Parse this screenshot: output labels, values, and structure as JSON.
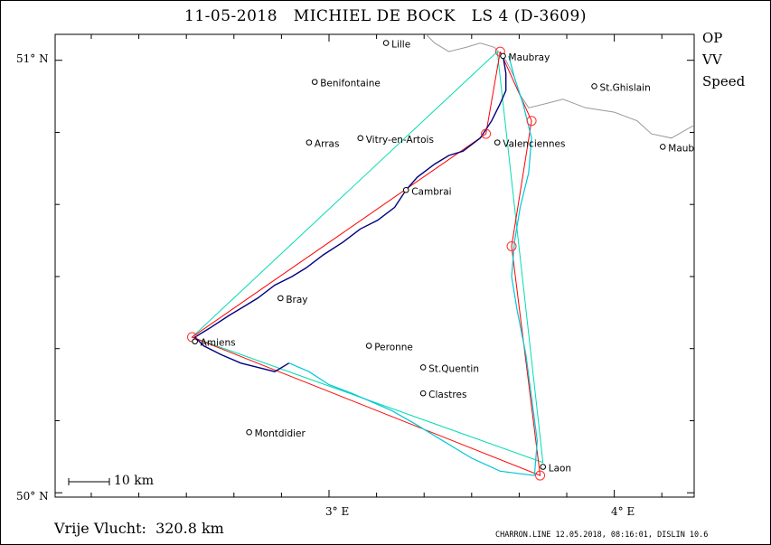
{
  "title": {
    "date": "11-05-2018",
    "pilot": "MICHIEL DE BOCK",
    "glider": "LS 4 (D-3609)"
  },
  "legend": [
    {
      "label": "OP",
      "color": "#00d88a"
    },
    {
      "label": "VV",
      "color": "#ff0000"
    },
    {
      "label": "Speed",
      "color": "#00dcdc"
    }
  ],
  "axes": {
    "lat_labels": [
      "51° N",
      "50° N"
    ],
    "lon_labels": [
      "3° E",
      "4° E"
    ]
  },
  "scale_bar": {
    "label": "10 km"
  },
  "footer": {
    "distance": "Vrije Vlucht:  320.8 km",
    "info": "CHARRON.LINE 12.05.2018, 08:16:01, DISLIN 10.6"
  },
  "map_data": {
    "extent": {
      "lon_min": 2.04,
      "lon_max": 4.28,
      "lat_min": 49.99,
      "lat_max": 51.06
    },
    "places": [
      {
        "name": "Lille",
        "lon": 3.2,
        "lat": 51.04
      },
      {
        "name": "Maubray",
        "lon": 3.61,
        "lat": 51.01
      },
      {
        "name": "Benifontaine",
        "lon": 2.95,
        "lat": 50.95
      },
      {
        "name": "St.Ghislain",
        "lon": 3.93,
        "lat": 50.94
      },
      {
        "name": "Arras",
        "lon": 2.93,
        "lat": 50.81
      },
      {
        "name": "Vitry-en-Artois",
        "lon": 3.11,
        "lat": 50.82
      },
      {
        "name": "Valenciennes",
        "lon": 3.59,
        "lat": 50.81
      },
      {
        "name": "Maub",
        "lon": 4.17,
        "lat": 50.8
      },
      {
        "name": "Cambrai",
        "lon": 3.27,
        "lat": 50.7
      },
      {
        "name": "Bray",
        "lon": 2.83,
        "lat": 50.45
      },
      {
        "name": "Amiens",
        "lon": 2.53,
        "lat": 50.35
      },
      {
        "name": "Peronne",
        "lon": 3.14,
        "lat": 50.34
      },
      {
        "name": "St.Quentin",
        "lon": 3.33,
        "lat": 50.29
      },
      {
        "name": "Clastres",
        "lon": 3.33,
        "lat": 50.23
      },
      {
        "name": "Montdidier",
        "lon": 2.72,
        "lat": 50.14
      },
      {
        "name": "Laon",
        "lon": 3.75,
        "lat": 50.06
      }
    ],
    "turnpoints_vv": [
      {
        "lon": 3.6,
        "lat": 51.02
      },
      {
        "lon": 3.55,
        "lat": 50.83
      },
      {
        "lon": 2.52,
        "lat": 50.36
      },
      {
        "lon": 3.74,
        "lat": 50.04
      },
      {
        "lon": 3.64,
        "lat": 50.57
      },
      {
        "lon": 3.71,
        "lat": 50.86
      },
      {
        "lon": 3.6,
        "lat": 51.02
      }
    ],
    "triangle_op": [
      {
        "lon": 3.59,
        "lat": 51.02
      },
      {
        "lon": 2.52,
        "lat": 50.36
      },
      {
        "lon": 3.75,
        "lat": 50.07
      },
      {
        "lon": 3.59,
        "lat": 51.02
      }
    ],
    "track_dark": [
      [
        3.61,
        51.01
      ],
      [
        3.62,
        50.97
      ],
      [
        3.62,
        50.93
      ],
      [
        3.6,
        50.9
      ],
      [
        3.57,
        50.86
      ],
      [
        3.53,
        50.82
      ],
      [
        3.47,
        50.79
      ],
      [
        3.42,
        50.78
      ],
      [
        3.37,
        50.76
      ],
      [
        3.31,
        50.73
      ],
      [
        3.27,
        50.7
      ],
      [
        3.23,
        50.66
      ],
      [
        3.17,
        50.63
      ],
      [
        3.11,
        50.61
      ],
      [
        3.05,
        50.58
      ],
      [
        2.98,
        50.55
      ],
      [
        2.92,
        50.52
      ],
      [
        2.87,
        50.5
      ],
      [
        2.81,
        50.48
      ],
      [
        2.75,
        50.45
      ],
      [
        2.7,
        50.43
      ],
      [
        2.65,
        50.41
      ],
      [
        2.58,
        50.38
      ],
      [
        2.53,
        50.36
      ],
      [
        2.56,
        50.34
      ],
      [
        2.62,
        50.32
      ],
      [
        2.69,
        50.3
      ],
      [
        2.75,
        50.29
      ],
      [
        2.81,
        50.28
      ],
      [
        2.86,
        50.3
      ]
    ],
    "track_cyan": [
      [
        2.86,
        50.3
      ],
      [
        2.93,
        50.28
      ],
      [
        3.0,
        50.25
      ],
      [
        3.08,
        50.23
      ],
      [
        3.15,
        50.21
      ],
      [
        3.22,
        50.19
      ],
      [
        3.3,
        50.16
      ],
      [
        3.4,
        50.12
      ],
      [
        3.5,
        50.08
      ],
      [
        3.6,
        50.05
      ],
      [
        3.72,
        50.04
      ],
      [
        3.73,
        50.12
      ],
      [
        3.71,
        50.22
      ],
      [
        3.69,
        50.32
      ],
      [
        3.66,
        50.42
      ],
      [
        3.64,
        50.5
      ],
      [
        3.65,
        50.58
      ],
      [
        3.67,
        50.66
      ],
      [
        3.7,
        50.74
      ],
      [
        3.71,
        50.82
      ],
      [
        3.68,
        50.9
      ],
      [
        3.65,
        50.96
      ],
      [
        3.63,
        51.01
      ]
    ],
    "border": [
      [
        4.28,
        50.85
      ],
      [
        4.2,
        50.82
      ],
      [
        4.13,
        50.83
      ],
      [
        4.08,
        50.86
      ],
      [
        4.0,
        50.88
      ],
      [
        3.9,
        50.89
      ],
      [
        3.82,
        50.91
      ],
      [
        3.76,
        50.9
      ],
      [
        3.7,
        50.89
      ],
      [
        3.67,
        50.92
      ],
      [
        3.65,
        50.96
      ],
      [
        3.62,
        51.0
      ],
      [
        3.58,
        51.03
      ],
      [
        3.53,
        51.04
      ],
      [
        3.48,
        51.03
      ],
      [
        3.42,
        51.02
      ],
      [
        3.37,
        51.04
      ],
      [
        3.34,
        51.06
      ]
    ]
  }
}
